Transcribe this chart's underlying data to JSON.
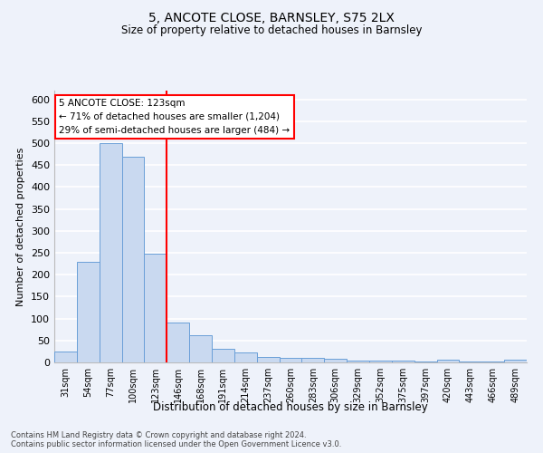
{
  "title": "5, ANCOTE CLOSE, BARNSLEY, S75 2LX",
  "subtitle": "Size of property relative to detached houses in Barnsley",
  "xlabel": "Distribution of detached houses by size in Barnsley",
  "ylabel": "Number of detached properties",
  "footnote": "Contains HM Land Registry data © Crown copyright and database right 2024.\nContains public sector information licensed under the Open Government Licence v3.0.",
  "bins": [
    "31sqm",
    "54sqm",
    "77sqm",
    "100sqm",
    "123sqm",
    "146sqm",
    "168sqm",
    "191sqm",
    "214sqm",
    "237sqm",
    "260sqm",
    "283sqm",
    "306sqm",
    "329sqm",
    "352sqm",
    "375sqm",
    "397sqm",
    "420sqm",
    "443sqm",
    "466sqm",
    "489sqm"
  ],
  "values": [
    25,
    230,
    500,
    470,
    248,
    90,
    63,
    30,
    22,
    12,
    11,
    10,
    8,
    5,
    4,
    4,
    3,
    7,
    3,
    2,
    6
  ],
  "bar_color": "#c9d9f0",
  "bar_edge_color": "#6a9fd8",
  "red_line_bin_index": 4,
  "annotation_text": "5 ANCOTE CLOSE: 123sqm\n← 71% of detached houses are smaller (1,204)\n29% of semi-detached houses are larger (484) →",
  "annotation_box_color": "white",
  "annotation_box_edge_color": "red",
  "red_line_color": "red",
  "background_color": "#eef2fa",
  "grid_color": "white",
  "ylim": [
    0,
    620
  ],
  "yticks": [
    0,
    50,
    100,
    150,
    200,
    250,
    300,
    350,
    400,
    450,
    500,
    550,
    600
  ]
}
